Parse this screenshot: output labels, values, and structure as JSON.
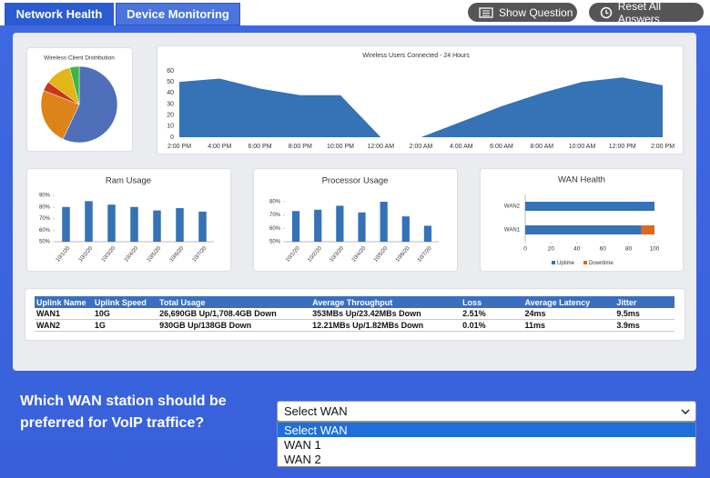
{
  "tabs": [
    "Network Health",
    "Device Monitoring"
  ],
  "buttons": [
    "Show Question",
    "Reset All Answers"
  ],
  "chart_data": [
    {
      "type": "pie",
      "title": "Wireless Client Distribution",
      "values": [
        57,
        24,
        4,
        11,
        4
      ],
      "colors": [
        "#4f6fba",
        "#dc8419",
        "#c9351f",
        "#e2b616",
        "#3db54a"
      ]
    },
    {
      "type": "area",
      "title": "Wireless Users Connected - 24 Hours",
      "categories": [
        "2:00 PM",
        "4:00 PM",
        "6:00 PM",
        "8:00 PM",
        "10:00 PM",
        "12:00 AM",
        "2:00 AM",
        "4:00 AM",
        "6:00 AM",
        "8:00 AM",
        "10:00 AM",
        "12:00 PM",
        "2:00 PM"
      ],
      "values": [
        50,
        53,
        44,
        38,
        38,
        0,
        0,
        14,
        28,
        40,
        50,
        54,
        47
      ],
      "color": "#3572b6",
      "ylim": [
        0,
        60
      ],
      "yticks": [
        0,
        10,
        20,
        30,
        40,
        50,
        60
      ]
    },
    {
      "type": "bar",
      "title": "Ram Usage",
      "categories": [
        "10/1/20",
        "10/2/20",
        "10/3/20",
        "10/4/20",
        "10/5/20",
        "10/6/20",
        "10/7/20"
      ],
      "values": [
        80,
        85,
        82,
        80,
        77,
        79,
        76
      ],
      "color": "#3572b6",
      "ylim": [
        50,
        90
      ],
      "yticks": [
        {
          "value": 50,
          "label": "50%"
        },
        {
          "value": 60,
          "label": "60%"
        },
        {
          "value": 70,
          "label": "70%"
        },
        {
          "value": 80,
          "label": "80%"
        },
        {
          "value": 90,
          "label": "90%"
        }
      ]
    },
    {
      "type": "bar",
      "title": "Processor Usage",
      "categories": [
        "10/1/20",
        "10/2/20",
        "10/3/20",
        "10/4/20",
        "10/5/20",
        "10/6/20",
        "10/7/20"
      ],
      "values": [
        73,
        74,
        77,
        72,
        80,
        69,
        62
      ],
      "color": "#3572b6",
      "ylim": [
        50,
        80
      ],
      "yticks": [
        {
          "value": 50,
          "label": "50%"
        },
        {
          "value": 60,
          "label": "60%"
        },
        {
          "value": 70,
          "label": "70%"
        },
        {
          "value": 80,
          "label": "80%"
        }
      ]
    },
    {
      "type": "hbar",
      "title": "WAN Health",
      "categories": [
        "WAN2",
        "WAN1"
      ],
      "stacked": true,
      "series": [
        {
          "name": "Uptime",
          "color": "#3572b6",
          "values": [
            100,
            90
          ]
        },
        {
          "name": "Downtime",
          "color": "#e0681a",
          "values": [
            0,
            10
          ]
        }
      ],
      "xlim": [
        0,
        100
      ],
      "xticks": [
        0,
        20,
        40,
        60,
        80,
        100
      ],
      "legend": "bottom"
    }
  ],
  "table": {
    "header": [
      "Uplink Name",
      "Uplink Speed",
      "Total Usage",
      "Average Throughput",
      "Loss",
      "Average Latency",
      "Jitter"
    ],
    "rows": [
      [
        "WAN1",
        "10G",
        "26,690GB Up/1,708.4GB Down",
        "353MBs Up/23.42MBs Down",
        "2.51%",
        "24ms",
        "9.5ms"
      ],
      [
        "WAN2",
        "1G",
        "930GB Up/138GB Down",
        "12.21MBs Up/1.82MBs Down",
        "0.01%",
        "11ms",
        "3.9ms"
      ]
    ]
  },
  "question": "Which WAN station should be preferred for VoIP traffice?",
  "select": {
    "placeholder": "Select WAN",
    "options": [
      "Select WAN",
      "WAN 1",
      "WAN 2"
    ]
  }
}
